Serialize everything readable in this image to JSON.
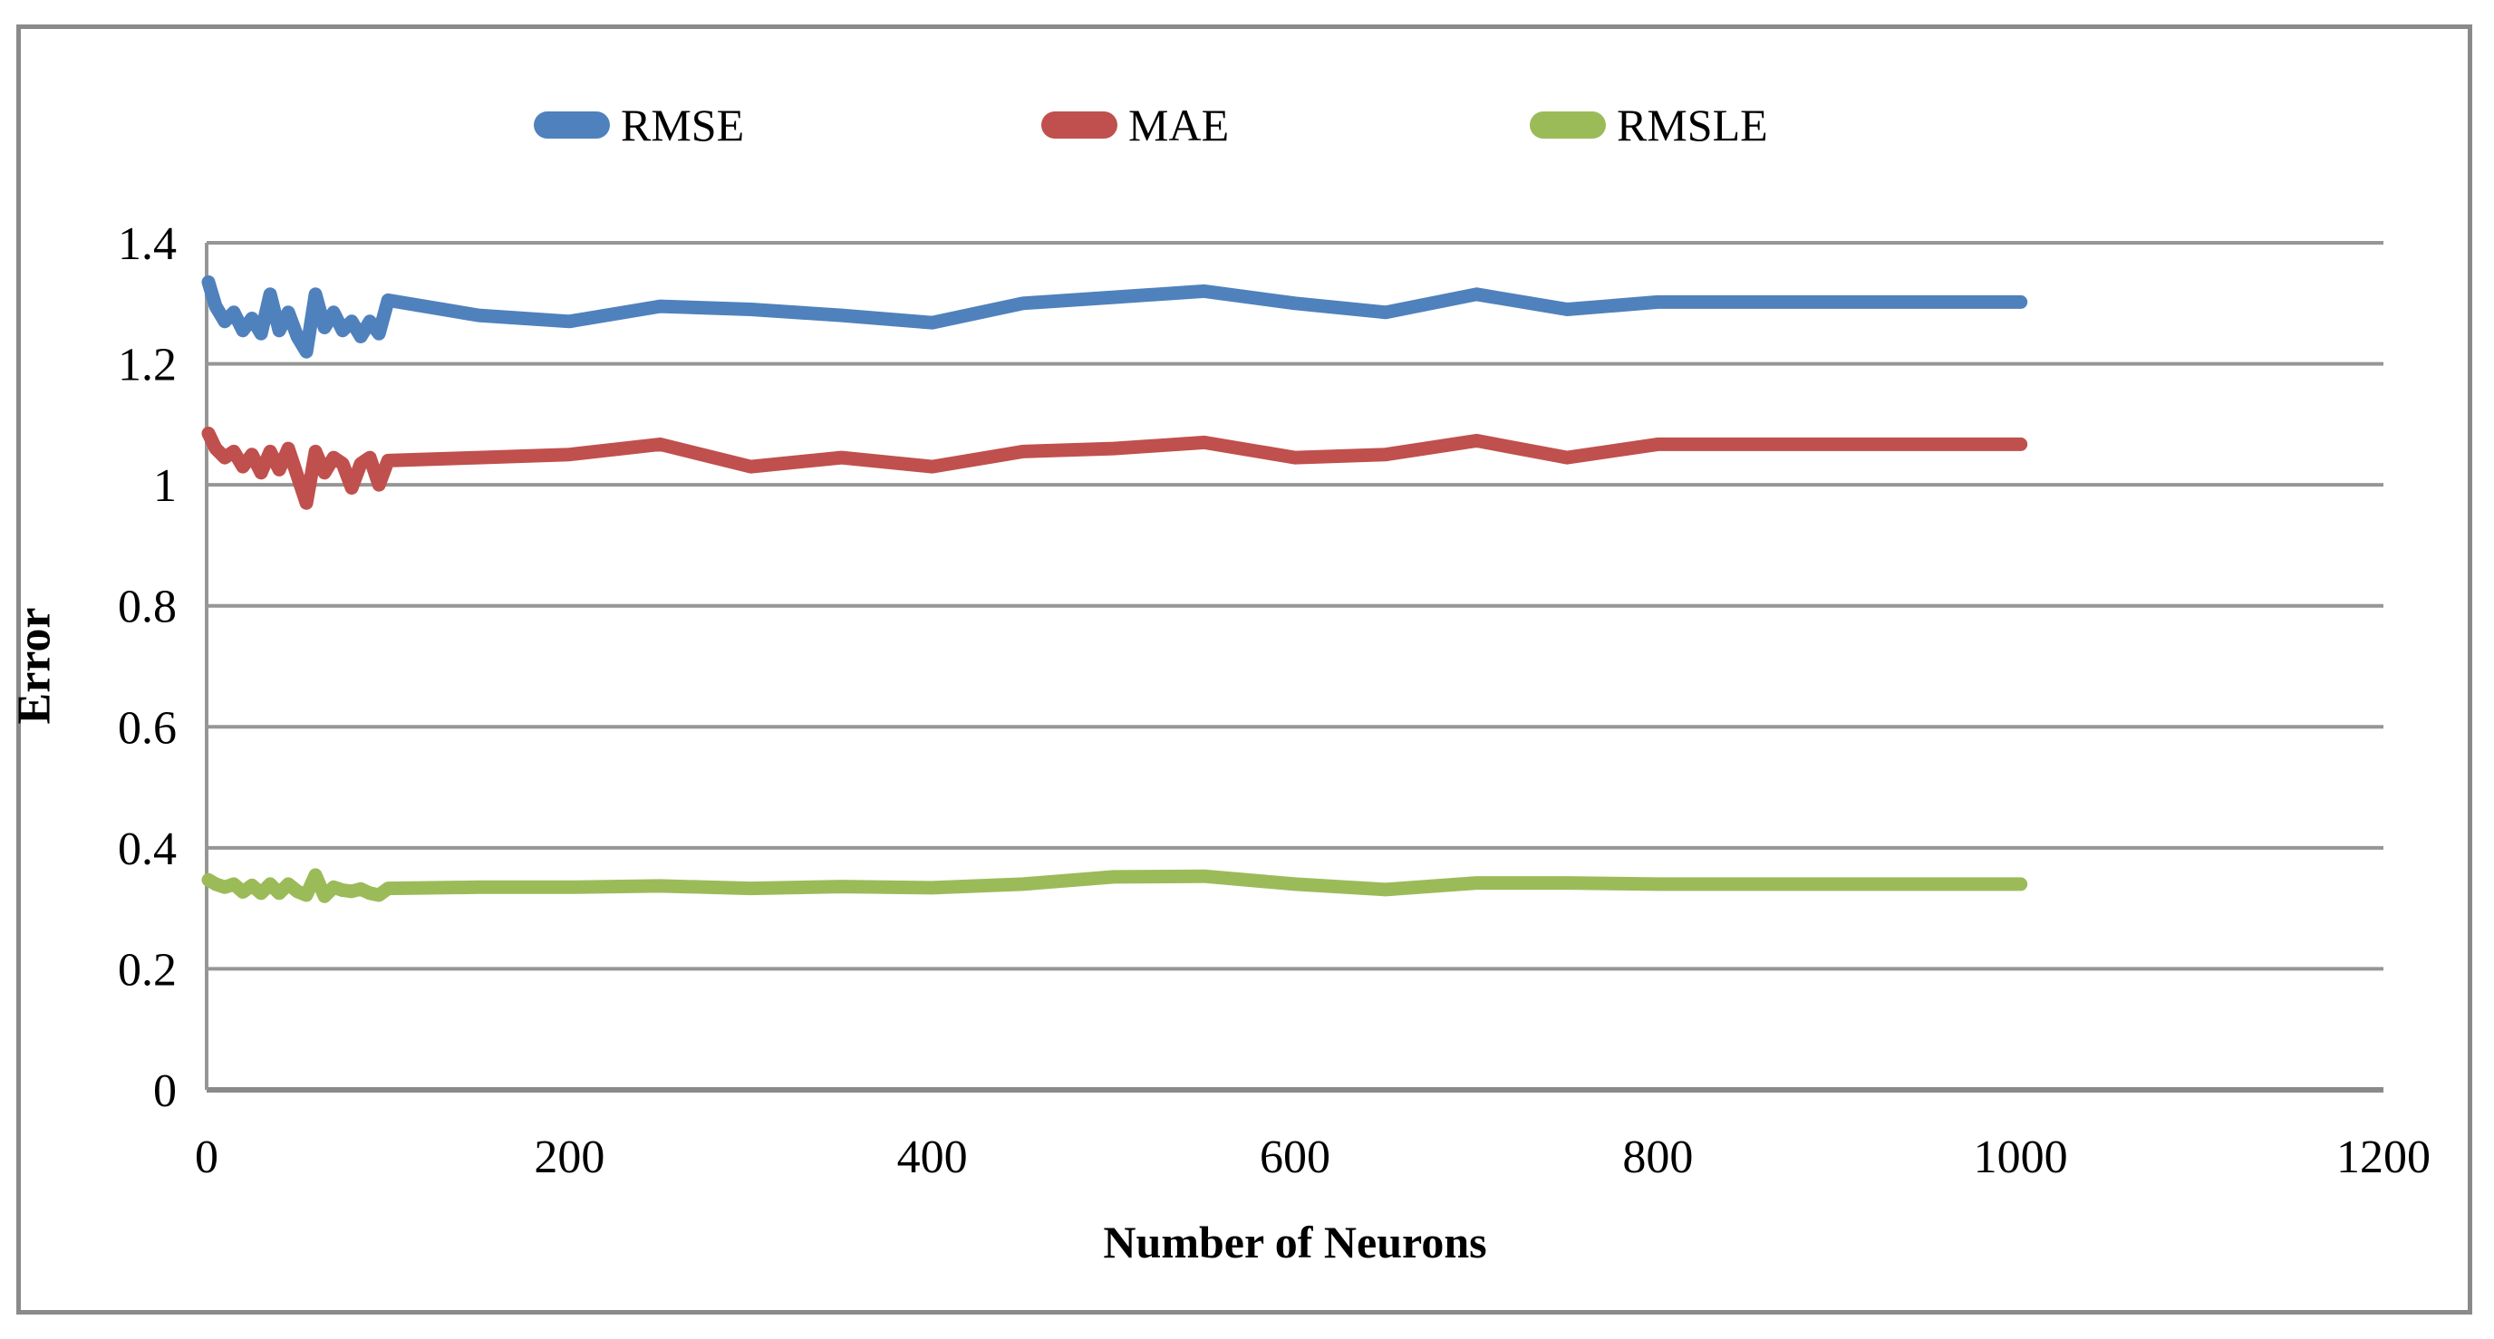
{
  "frame": {
    "background": "#FFFFFF",
    "border_color": "#8A8A8A",
    "gridline_color": "#969696",
    "axis_line_color": "#8A8A8A"
  },
  "chart_data": {
    "type": "line",
    "title": "",
    "xlabel": "Number of Neurons",
    "ylabel": "Error",
    "xlim": [
      0,
      1200
    ],
    "ylim": [
      0,
      1.4
    ],
    "x_ticks": [
      "0",
      "200",
      "400",
      "600",
      "800",
      "1000",
      "1200"
    ],
    "x_tick_values": [
      0,
      200,
      400,
      600,
      800,
      1000,
      1200
    ],
    "y_ticks": [
      "0",
      "0.2",
      "0.4",
      "0.6",
      "0.8",
      "1",
      "1.2",
      "1.4"
    ],
    "y_tick_values": [
      0,
      0.2,
      0.4,
      0.6,
      0.8,
      1.0,
      1.2,
      1.4
    ],
    "grid": "horizontal",
    "legend_position": "top",
    "x": [
      1,
      5,
      10,
      15,
      20,
      25,
      30,
      35,
      40,
      45,
      50,
      55,
      60,
      65,
      70,
      75,
      80,
      85,
      90,
      95,
      100,
      150,
      200,
      250,
      300,
      350,
      400,
      450,
      500,
      550,
      600,
      650,
      700,
      750,
      800,
      850,
      900,
      950,
      1000
    ],
    "series": [
      {
        "name": "RMSE",
        "color": "#4F81BD",
        "values": [
          1.335,
          1.295,
          1.27,
          1.285,
          1.255,
          1.275,
          1.25,
          1.315,
          1.255,
          1.285,
          1.245,
          1.22,
          1.315,
          1.26,
          1.285,
          1.255,
          1.27,
          1.245,
          1.27,
          1.25,
          1.305,
          1.28,
          1.27,
          1.295,
          1.29,
          1.28,
          1.268,
          1.3,
          1.31,
          1.32,
          1.3,
          1.285,
          1.315,
          1.29,
          1.302,
          1.302,
          1.302,
          1.302,
          1.302
        ]
      },
      {
        "name": "MAE",
        "color": "#C0504D",
        "values": [
          1.085,
          1.06,
          1.045,
          1.055,
          1.03,
          1.05,
          1.02,
          1.055,
          1.025,
          1.06,
          1.015,
          0.97,
          1.055,
          1.02,
          1.045,
          1.035,
          0.995,
          1.035,
          1.045,
          1.0,
          1.04,
          1.045,
          1.05,
          1.067,
          1.03,
          1.045,
          1.03,
          1.055,
          1.06,
          1.07,
          1.045,
          1.05,
          1.073,
          1.045,
          1.067,
          1.067,
          1.067,
          1.067,
          1.067
        ]
      },
      {
        "name": "RMSLE",
        "color": "#9BBB59",
        "values": [
          0.347,
          0.34,
          0.335,
          0.34,
          0.327,
          0.338,
          0.325,
          0.34,
          0.325,
          0.34,
          0.328,
          0.322,
          0.355,
          0.32,
          0.335,
          0.33,
          0.328,
          0.332,
          0.325,
          0.322,
          0.333,
          0.335,
          0.335,
          0.337,
          0.333,
          0.336,
          0.334,
          0.34,
          0.352,
          0.353,
          0.34,
          0.331,
          0.342,
          0.342,
          0.34,
          0.34,
          0.34,
          0.34,
          0.34
        ]
      }
    ]
  }
}
